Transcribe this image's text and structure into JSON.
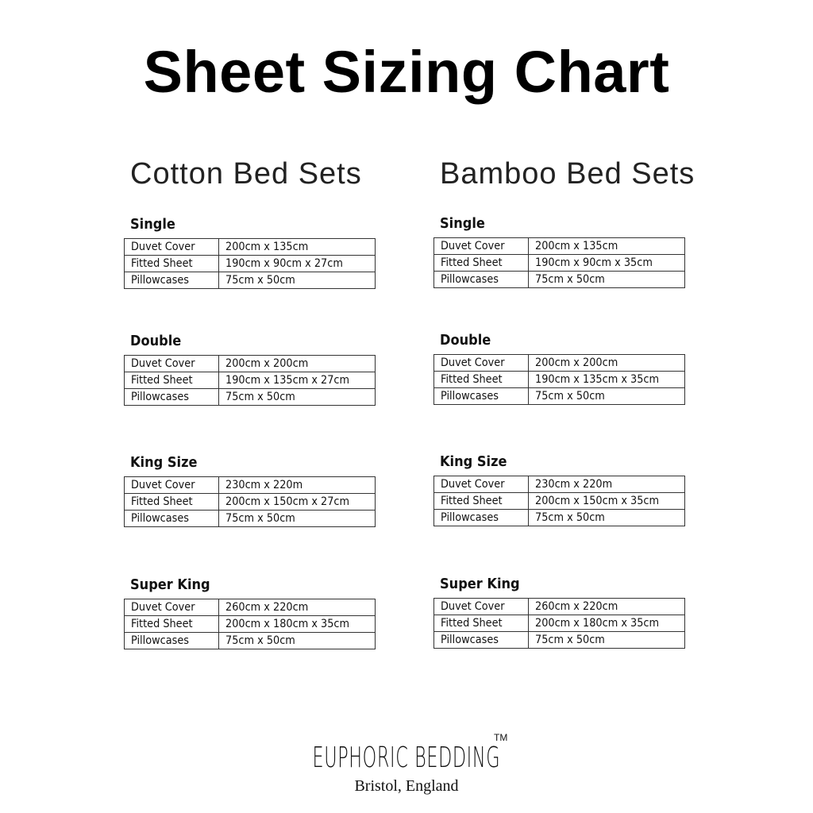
{
  "title": "Sheet Sizing Chart",
  "columns": [
    {
      "title": "Cotton Bed Sets",
      "sections": [
        {
          "name": "Single",
          "rows": [
            [
              "Duvet Cover",
              "200cm x 135cm"
            ],
            [
              "Fitted Sheet",
              "190cm x 90cm x 27cm"
            ],
            [
              "Pillowcases",
              "75cm x 50cm"
            ]
          ]
        },
        {
          "name": "Double",
          "rows": [
            [
              "Duvet Cover",
              "200cm x 200cm"
            ],
            [
              "Fitted Sheet",
              "190cm x 135cm x 27cm"
            ],
            [
              "Pillowcases",
              "75cm x 50cm"
            ]
          ]
        },
        {
          "name": "King Size",
          "rows": [
            [
              "Duvet Cover",
              "230cm x 220m"
            ],
            [
              "Fitted Sheet",
              "200cm x 150cm x 27cm"
            ],
            [
              "Pillowcases",
              "75cm x 50cm"
            ]
          ]
        },
        {
          "name": "Super King",
          "rows": [
            [
              "Duvet Cover",
              "260cm x 220cm"
            ],
            [
              "Fitted Sheet",
              "200cm x 180cm x 35cm"
            ],
            [
              "Pillowcases",
              "75cm x 50cm"
            ]
          ]
        }
      ]
    },
    {
      "title": "Bamboo Bed Sets",
      "sections": [
        {
          "name": "Single",
          "rows": [
            [
              "Duvet Cover",
              "200cm x 135cm"
            ],
            [
              "Fitted Sheet",
              "190cm x 90cm x 35cm"
            ],
            [
              "Pillowcases",
              "75cm x 50cm"
            ]
          ]
        },
        {
          "name": "Double",
          "rows": [
            [
              "Duvet Cover",
              "200cm x 200cm"
            ],
            [
              "Fitted Sheet",
              "190cm x 135cm x 35cm"
            ],
            [
              "Pillowcases",
              "75cm x 50cm"
            ]
          ]
        },
        {
          "name": "King Size",
          "rows": [
            [
              "Duvet Cover",
              "230cm x 220m"
            ],
            [
              "Fitted Sheet",
              "200cm x 150cm x 35cm"
            ],
            [
              "Pillowcases",
              "75cm x 50cm"
            ]
          ]
        },
        {
          "name": "Super King",
          "rows": [
            [
              "Duvet Cover",
              "260cm x 220cm"
            ],
            [
              "Fitted Sheet",
              "200cm x 180cm x 35cm"
            ],
            [
              "Pillowcases",
              "75cm x 50cm"
            ]
          ]
        }
      ]
    }
  ],
  "brand": {
    "logo": "EUPHORIC BEDDING",
    "trademark": "TM",
    "location": "Bristol, England"
  }
}
